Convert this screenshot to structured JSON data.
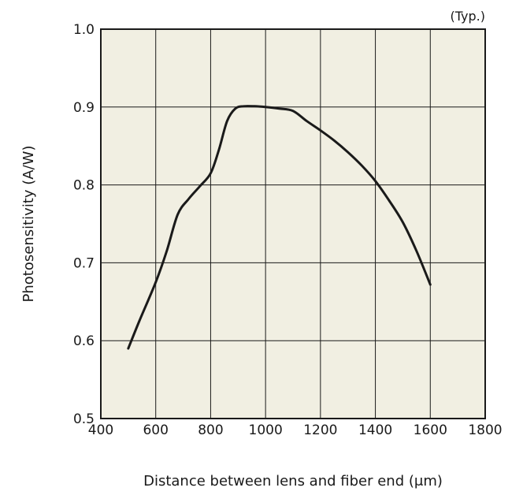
{
  "chart_data": {
    "type": "line",
    "title": "",
    "note": "(Typ.)",
    "xlabel": "Distance between lens and fiber end (μm)",
    "ylabel": "Photosensitivity (A/W)",
    "xlim": [
      400,
      1800
    ],
    "ylim": [
      0.5,
      1.0
    ],
    "xticks": [
      400,
      600,
      800,
      1000,
      1200,
      1400,
      1600,
      1800
    ],
    "yticks": [
      0.5,
      0.6,
      0.7,
      0.8,
      0.9,
      1.0
    ],
    "xtick_labels": [
      "400",
      "600",
      "800",
      "1000",
      "1200",
      "1400",
      "1600",
      "1800"
    ],
    "ytick_labels": [
      "0.5",
      "0.6",
      "0.7",
      "0.8",
      "0.9",
      "1.0"
    ],
    "grid": true,
    "legend": "none",
    "colors": {
      "plot_background": "#f1efe2",
      "grid": "#1a1a1a",
      "line": "#1a1a1a"
    },
    "series": [
      {
        "x": [
          500,
          540,
          600,
          640,
          680,
          720,
          760,
          800,
          830,
          860,
          890,
          920,
          960,
          1000,
          1050,
          1100,
          1150,
          1200,
          1250,
          1300,
          1350,
          1400,
          1450,
          1500,
          1550,
          1600
        ],
        "y": [
          0.59,
          0.625,
          0.675,
          0.715,
          0.762,
          0.782,
          0.798,
          0.815,
          0.845,
          0.882,
          0.898,
          0.901,
          0.901,
          0.9,
          0.898,
          0.895,
          0.882,
          0.87,
          0.857,
          0.842,
          0.825,
          0.805,
          0.78,
          0.752,
          0.715,
          0.672
        ]
      }
    ]
  }
}
